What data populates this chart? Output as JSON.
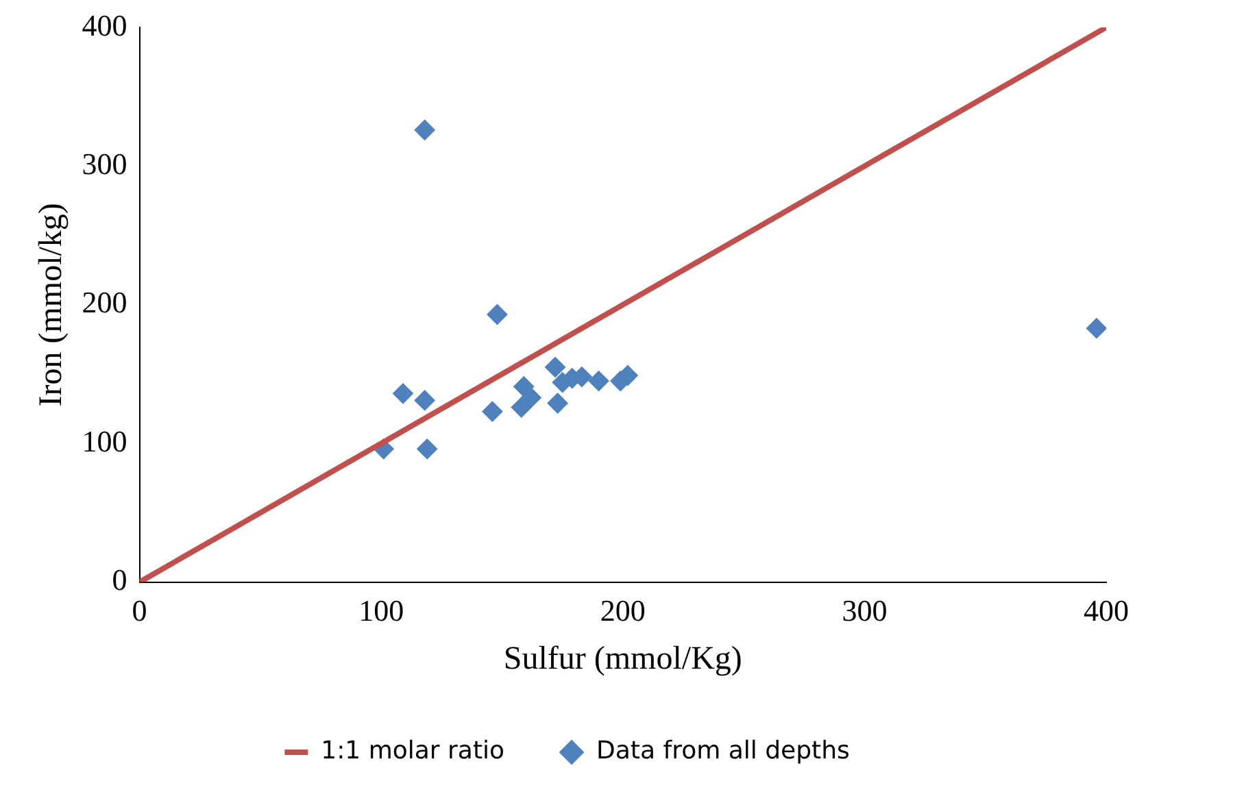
{
  "chart_data": {
    "type": "scatter",
    "xlabel": "Sulfur (mmol/Kg)",
    "ylabel": "Iron (mmol/kg)",
    "xlim": [
      0,
      400
    ],
    "ylim": [
      0,
      400
    ],
    "xticks": [
      0,
      100,
      200,
      300,
      400
    ],
    "yticks": [
      0,
      100,
      200,
      300,
      400
    ],
    "grid": false,
    "legend": "bottom",
    "series": [
      {
        "name": "1:1 molar ratio",
        "type": "line",
        "color": "#c0504d",
        "x": [
          0,
          400
        ],
        "values": [
          0,
          400
        ]
      },
      {
        "name": "Data from all depths",
        "type": "scatter",
        "marker": "diamond",
        "color": "#4f81bd",
        "x": [
          101,
          109,
          118,
          119,
          118,
          146,
          148,
          158,
          159,
          162,
          172,
          173,
          175,
          179,
          183,
          190,
          199,
          202,
          396
        ],
        "values": [
          96,
          136,
          131,
          96,
          326,
          123,
          193,
          126,
          141,
          133,
          155,
          129,
          144,
          147,
          148,
          145,
          145,
          149,
          183
        ]
      }
    ]
  }
}
